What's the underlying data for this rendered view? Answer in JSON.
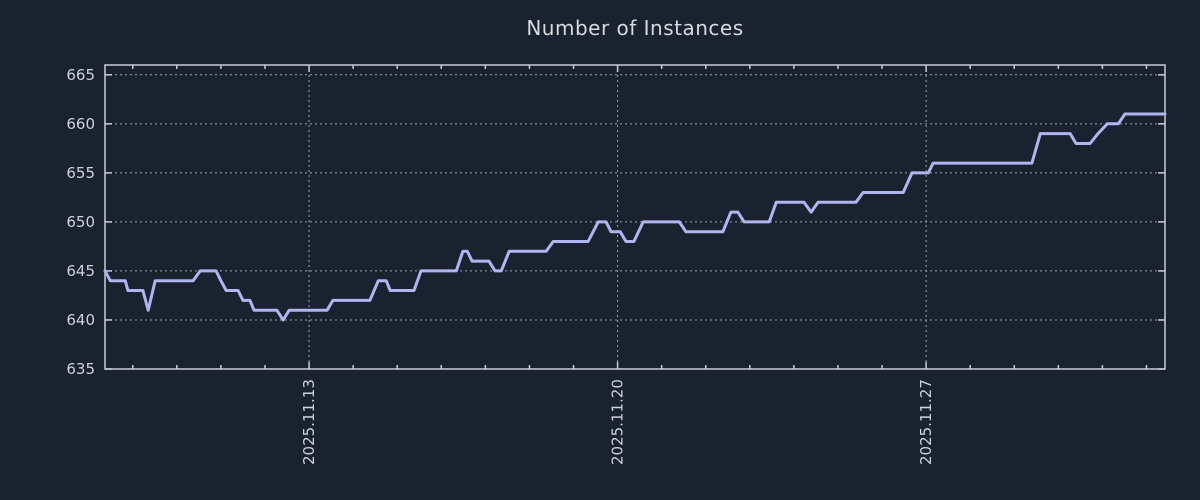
{
  "chart_data": {
    "type": "line",
    "title": "Number of Instances",
    "x_axis": {
      "unit": "date (x measured in days, 0 = 2025.11.08 00:00)",
      "range_days": [
        0.37,
        24.42
      ],
      "major_ticks": [
        {
          "label": "2025.11.13",
          "day": 5
        },
        {
          "label": "2025.11.20",
          "day": 12
        },
        {
          "label": "2025.11.27",
          "day": 19
        }
      ],
      "minor_tick_interval_days": 1,
      "grid": true
    },
    "y_axis": {
      "ticks": [
        635,
        640,
        645,
        650,
        655,
        660,
        665
      ],
      "range": [
        635,
        666
      ],
      "grid": true
    },
    "legend": "none",
    "series": [
      {
        "name": "instances",
        "color": "#aeb5f1",
        "points": [
          [
            0.37,
            645
          ],
          [
            0.49,
            644
          ],
          [
            0.83,
            644
          ],
          [
            0.89,
            643
          ],
          [
            1.23,
            643
          ],
          [
            1.35,
            641
          ],
          [
            1.51,
            644
          ],
          [
            2.37,
            644
          ],
          [
            2.53,
            645
          ],
          [
            2.89,
            645
          ],
          [
            3.0,
            644
          ],
          [
            3.12,
            643
          ],
          [
            3.39,
            643
          ],
          [
            3.5,
            642
          ],
          [
            3.66,
            642
          ],
          [
            3.75,
            641
          ],
          [
            4.27,
            641
          ],
          [
            4.41,
            640
          ],
          [
            4.55,
            641
          ],
          [
            5.41,
            641
          ],
          [
            5.54,
            642
          ],
          [
            6.38,
            642
          ],
          [
            6.57,
            644
          ],
          [
            6.75,
            644
          ],
          [
            6.84,
            643
          ],
          [
            7.38,
            643
          ],
          [
            7.54,
            645
          ],
          [
            8.34,
            645
          ],
          [
            8.49,
            647
          ],
          [
            8.59,
            647
          ],
          [
            8.7,
            646
          ],
          [
            9.08,
            646
          ],
          [
            9.22,
            645
          ],
          [
            9.36,
            645
          ],
          [
            9.54,
            647
          ],
          [
            10.38,
            647
          ],
          [
            10.54,
            648
          ],
          [
            11.33,
            648
          ],
          [
            11.56,
            650
          ],
          [
            11.74,
            650
          ],
          [
            11.85,
            649
          ],
          [
            12.06,
            649
          ],
          [
            12.19,
            648
          ],
          [
            12.37,
            648
          ],
          [
            12.58,
            650
          ],
          [
            13.4,
            650
          ],
          [
            13.55,
            649
          ],
          [
            14.39,
            649
          ],
          [
            14.57,
            651
          ],
          [
            14.73,
            651
          ],
          [
            14.87,
            650
          ],
          [
            15.44,
            650
          ],
          [
            15.6,
            652
          ],
          [
            16.23,
            652
          ],
          [
            16.39,
            651
          ],
          [
            16.55,
            652
          ],
          [
            17.41,
            652
          ],
          [
            17.57,
            653
          ],
          [
            18.48,
            653
          ],
          [
            18.68,
            655
          ],
          [
            19.05,
            655
          ],
          [
            19.16,
            656
          ],
          [
            21.4,
            656
          ],
          [
            21.59,
            659
          ],
          [
            22.27,
            659
          ],
          [
            22.4,
            658
          ],
          [
            22.72,
            658
          ],
          [
            22.9,
            659
          ],
          [
            23.11,
            660
          ],
          [
            23.36,
            660
          ],
          [
            23.51,
            661
          ],
          [
            24.42,
            661
          ]
        ]
      }
    ]
  },
  "colors": {
    "background": "#1a2230",
    "line": "#aeb5f1",
    "border": "#c9cdd6",
    "grid": "#9aa1ad",
    "tick_label": "#ced3da",
    "title": "#d6dade"
  }
}
